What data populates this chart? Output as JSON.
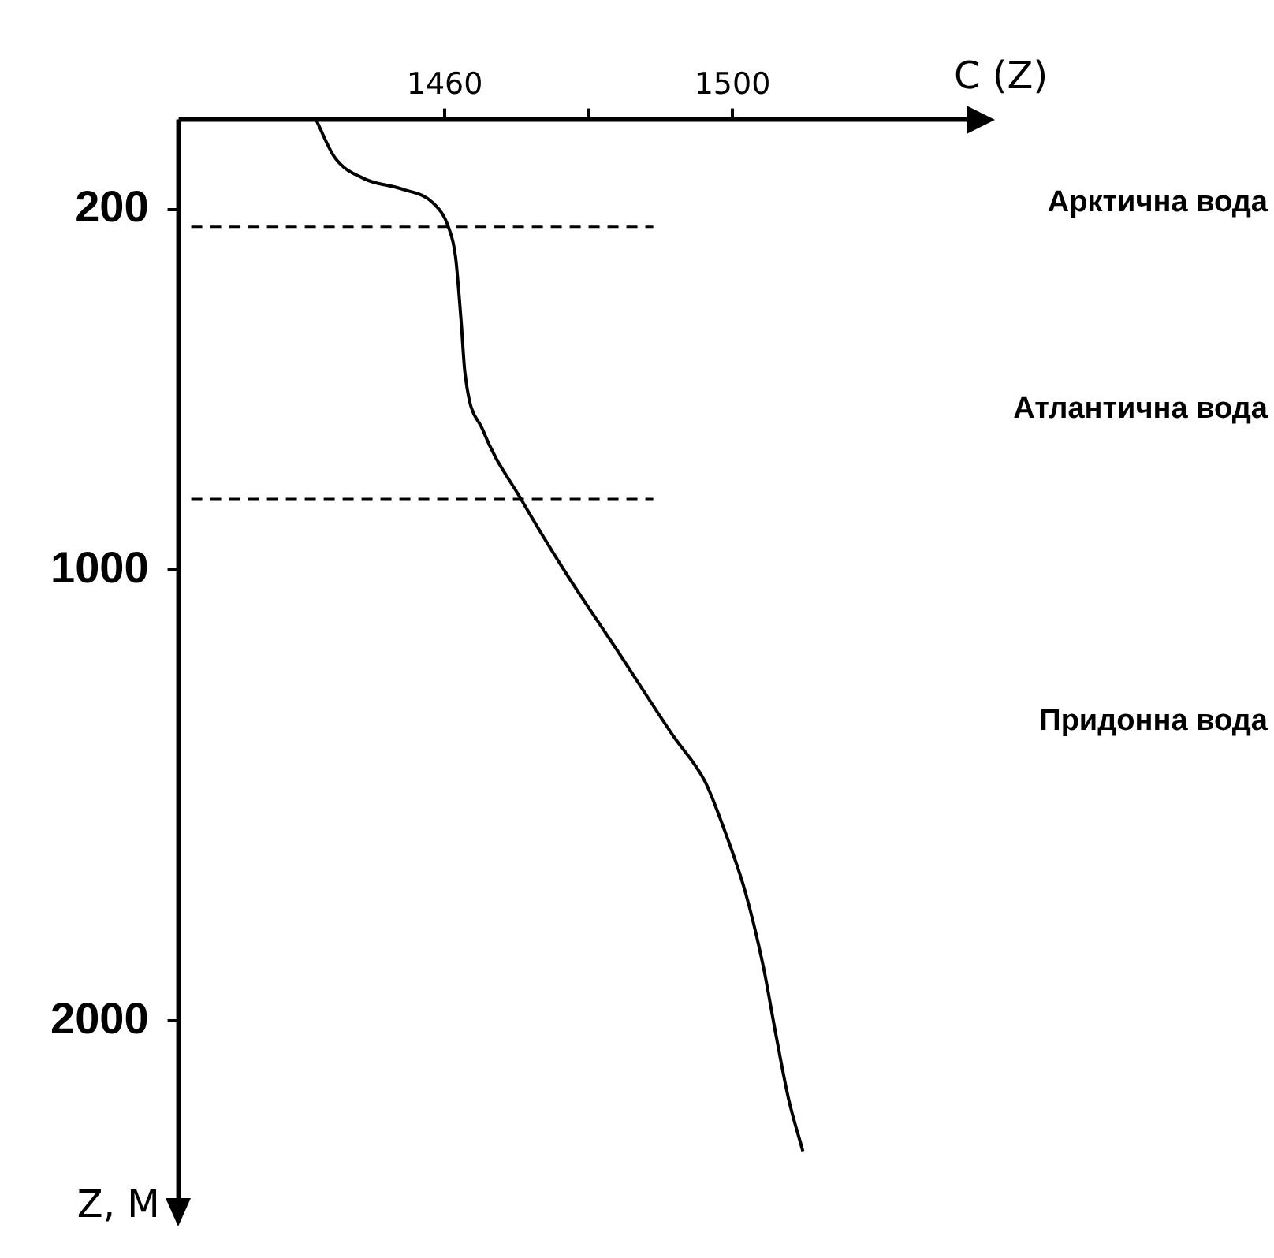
{
  "chart_data": {
    "type": "line",
    "xlabel": "C (Z)",
    "ylabel": "Z, М",
    "x": [
      1442.1,
      1444.7,
      1448.9,
      1454,
      1458.5,
      1460.5,
      1461.5,
      1462.3,
      1462.8,
      1465.3,
      1470.6,
      1476.6,
      1484.2,
      1491.7,
      1496.2,
      1498.7,
      1501.8,
      1504.3,
      1506,
      1507.8,
      1509.8
    ],
    "series": [
      {
        "color": "#000000",
        "values": [
          0,
          84,
          132,
          154,
          187,
          238,
          304,
          451,
          560,
          689,
          842,
          1000,
          1183,
          1366,
          1469,
          1568,
          1714,
          1879,
          2026,
          2172,
          2289
        ]
      }
    ],
    "xlim": [
      1423,
      1533
    ],
    "xticks": [
      1460,
      {
        "value": 1480,
        "label": null
      },
      1500
    ],
    "ylim": [
      2400,
      0
    ],
    "yticks": [
      200,
      1000,
      2000
    ],
    "ref_lines": [
      {
        "axis": "y",
        "value": 238,
        "line_style": "dashed",
        "color": "#000000"
      },
      {
        "axis": "y",
        "value": 842,
        "line_style": "dashed",
        "color": "#000000"
      }
    ],
    "annotations": [
      "Арктична вода",
      "Атлантична вода",
      "Придонна вода"
    ],
    "grid": false,
    "legend": false,
    "marker": "none",
    "line_style": "solid"
  }
}
